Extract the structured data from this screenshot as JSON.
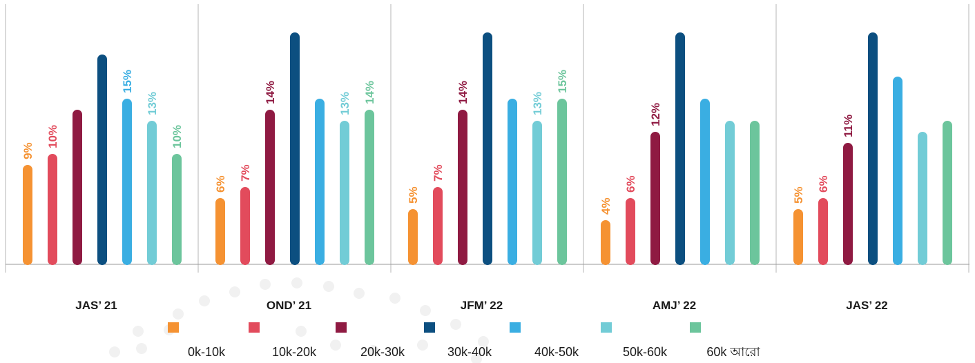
{
  "chart_data": {
    "type": "bar",
    "title": "",
    "xlabel": "",
    "ylabel": "",
    "grid": false,
    "legend_position": "bottom",
    "ylim": [
      0,
      24
    ],
    "categories": [
      "JAS’ 21",
      "OND’ 21",
      "JFM’ 22",
      "AMJ’ 22",
      "JAS’ 22"
    ],
    "series": [
      {
        "name": "0k-10k",
        "color": "#f59232",
        "values": [
          9,
          6,
          5,
          4,
          5
        ],
        "labels": [
          "9%",
          "6%",
          "5%",
          "4%",
          "5%"
        ]
      },
      {
        "name": "10k-20k",
        "color": "#e24b5c",
        "values": [
          10,
          7,
          7,
          6,
          6
        ],
        "labels": [
          "10%",
          "7%",
          "7%",
          "6%",
          "6%"
        ]
      },
      {
        "name": "20k-30k",
        "color": "#8f1a42",
        "values": [
          14,
          14,
          14,
          12,
          11
        ],
        "labels": [
          "",
          "14%",
          "14%",
          "12%",
          "11%"
        ]
      },
      {
        "name": "30k-40k",
        "color": "#0c4f80",
        "values": [
          19,
          21,
          21,
          21,
          21
        ],
        "labels": [
          "",
          "",
          "",
          "",
          ""
        ]
      },
      {
        "name": "40k-50k",
        "color": "#3aaee2",
        "values": [
          15,
          15,
          15,
          15,
          17
        ],
        "labels": [
          "15%",
          "",
          "",
          "",
          ""
        ]
      },
      {
        "name": "50k-60k",
        "color": "#72ccd6",
        "values": [
          13,
          13,
          13,
          13,
          12
        ],
        "labels": [
          "13%",
          "13%",
          "13%",
          "",
          ""
        ]
      },
      {
        "name": "60k আরো",
        "color": "#6cc59c",
        "values": [
          10,
          14,
          15,
          13,
          13
        ],
        "labels": [
          "10%",
          "14%",
          "15%",
          "",
          ""
        ]
      }
    ]
  }
}
